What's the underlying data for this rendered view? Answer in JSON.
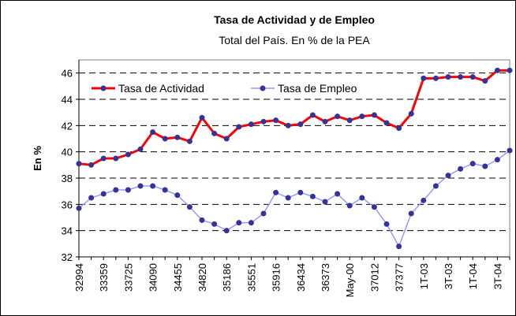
{
  "chart_data": {
    "type": "line",
    "title": "Tasa de Actividad y de Empleo",
    "subtitle": "Total del País. En % de la PEA",
    "y_label": "En %",
    "categories": [
      "32994",
      null,
      "33359",
      null,
      "33725",
      null,
      "34090",
      null,
      "34455",
      null,
      "34820",
      null,
      "35186",
      null,
      "35551",
      null,
      "35916",
      null,
      "36434",
      null,
      "36373",
      null,
      "May-00",
      null,
      "37012",
      null,
      "37377",
      null,
      "1T-03",
      null,
      "3T-03",
      null,
      "1T-04",
      null,
      "3T-04",
      null
    ],
    "series": [
      {
        "name": "Tasa de Actividad",
        "color": "#ff0000",
        "marker_color": "#333399",
        "values": [
          39.1,
          39.0,
          39.5,
          39.5,
          39.8,
          40.2,
          41.5,
          41.0,
          41.1,
          40.8,
          42.6,
          41.4,
          41.0,
          41.9,
          42.1,
          42.3,
          42.4,
          42.0,
          42.1,
          42.8,
          42.3,
          42.7,
          42.4,
          42.7,
          42.8,
          42.2,
          41.8,
          42.9,
          45.6,
          45.6,
          45.7,
          45.7,
          45.7,
          45.4,
          46.2,
          46.2
        ]
      },
      {
        "name": "Tasa de Empleo",
        "color": "#9999ff",
        "marker_color": "#333399",
        "values": [
          35.7,
          36.5,
          36.8,
          37.1,
          37.1,
          37.4,
          37.4,
          37.1,
          36.7,
          35.8,
          34.8,
          34.5,
          34.0,
          34.6,
          34.6,
          35.3,
          36.9,
          36.5,
          36.9,
          36.6,
          36.2,
          36.8,
          35.9,
          36.5,
          35.8,
          34.5,
          32.8,
          35.3,
          36.3,
          37.4,
          38.2,
          38.7,
          39.1,
          38.9,
          39.4,
          40.1
        ]
      }
    ],
    "ylim": [
      32,
      47
    ],
    "yticks": [
      32,
      34,
      36,
      38,
      40,
      42,
      44,
      46
    ],
    "grid": true
  }
}
